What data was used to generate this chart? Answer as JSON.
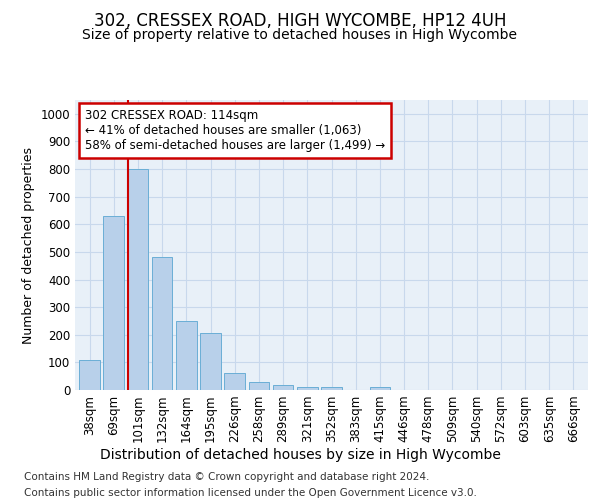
{
  "title": "302, CRESSEX ROAD, HIGH WYCOMBE, HP12 4UH",
  "subtitle": "Size of property relative to detached houses in High Wycombe",
  "xlabel": "Distribution of detached houses by size in High Wycombe",
  "ylabel": "Number of detached properties",
  "footer_line1": "Contains HM Land Registry data © Crown copyright and database right 2024.",
  "footer_line2": "Contains public sector information licensed under the Open Government Licence v3.0.",
  "bar_labels": [
    "38sqm",
    "69sqm",
    "101sqm",
    "132sqm",
    "164sqm",
    "195sqm",
    "226sqm",
    "258sqm",
    "289sqm",
    "321sqm",
    "352sqm",
    "383sqm",
    "415sqm",
    "446sqm",
    "478sqm",
    "509sqm",
    "540sqm",
    "572sqm",
    "603sqm",
    "635sqm",
    "666sqm"
  ],
  "bar_values": [
    110,
    630,
    800,
    480,
    250,
    205,
    60,
    30,
    18,
    12,
    10,
    0,
    10,
    0,
    0,
    0,
    0,
    0,
    0,
    0,
    0
  ],
  "bar_color": "#b8d0ea",
  "bar_edgecolor": "#6aaed6",
  "vline_color": "#cc0000",
  "vline_x_index": 2,
  "annotation_text": "302 CRESSEX ROAD: 114sqm\n← 41% of detached houses are smaller (1,063)\n58% of semi-detached houses are larger (1,499) →",
  "annotation_box_facecolor": "#ffffff",
  "annotation_box_edgecolor": "#cc0000",
  "ylim": [
    0,
    1050
  ],
  "yticks": [
    0,
    100,
    200,
    300,
    400,
    500,
    600,
    700,
    800,
    900,
    1000
  ],
  "grid_color": "#c8d8ec",
  "background_color": "#ffffff",
  "plot_bg_color": "#e8f0f8",
  "title_fontsize": 12,
  "subtitle_fontsize": 10,
  "xlabel_fontsize": 10,
  "ylabel_fontsize": 9,
  "tick_fontsize": 8.5,
  "annotation_fontsize": 8.5,
  "footer_fontsize": 7.5
}
